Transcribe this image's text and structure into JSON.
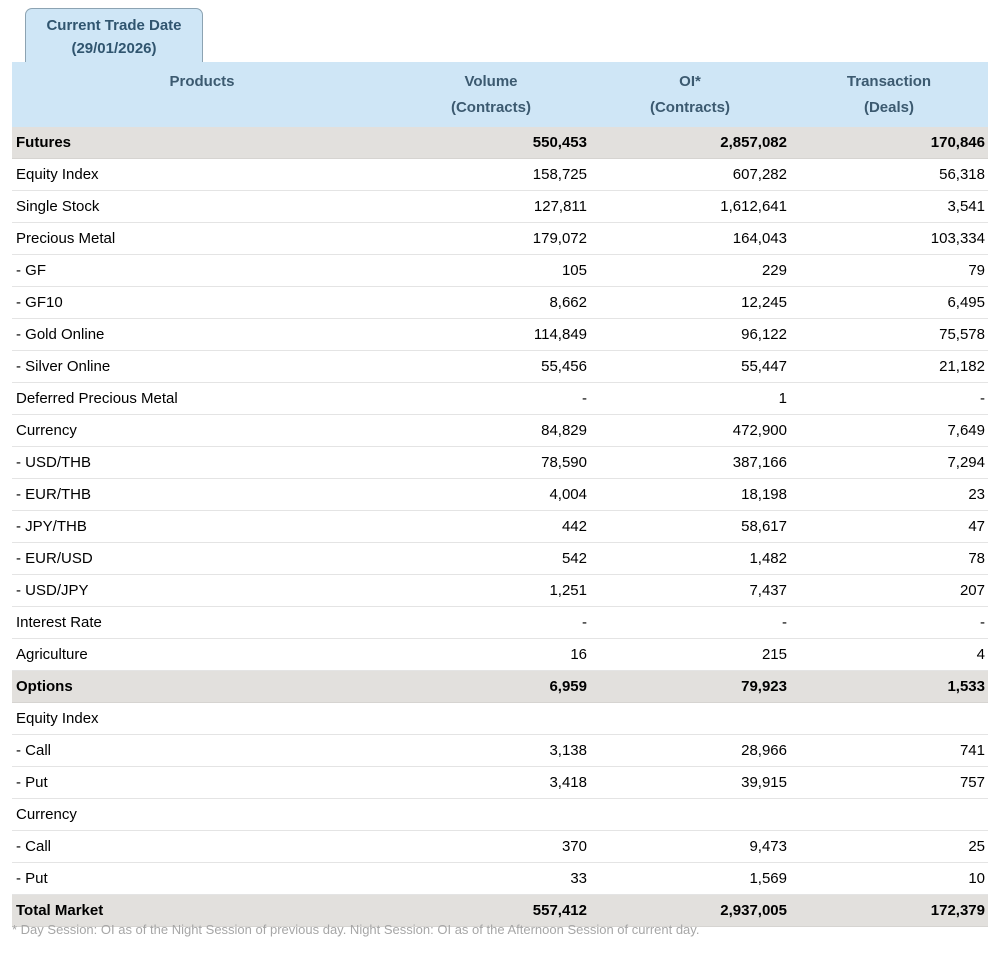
{
  "tab": {
    "title": "Current Trade Date",
    "date": "(29/01/2026)"
  },
  "table": {
    "columns": [
      {
        "label": "Products",
        "sub": ""
      },
      {
        "label": "Volume",
        "sub": "(Contracts)"
      },
      {
        "label": "OI*",
        "sub": "(Contracts)"
      },
      {
        "label": "Transaction",
        "sub": "(Deals)"
      }
    ],
    "rows": [
      {
        "product": "Futures",
        "volume": "550,453",
        "oi": "2,857,082",
        "transaction": "170,846",
        "type": "section"
      },
      {
        "product": "Equity Index",
        "volume": "158,725",
        "oi": "607,282",
        "transaction": "56,318",
        "type": "item"
      },
      {
        "product": "Single Stock",
        "volume": "127,811",
        "oi": "1,612,641",
        "transaction": "3,541",
        "type": "item"
      },
      {
        "product": "Precious Metal",
        "volume": "179,072",
        "oi": "164,043",
        "transaction": "103,334",
        "type": "item"
      },
      {
        "product": "- GF",
        "volume": "105",
        "oi": "229",
        "transaction": "79",
        "type": "item"
      },
      {
        "product": "- GF10",
        "volume": "8,662",
        "oi": "12,245",
        "transaction": "6,495",
        "type": "item"
      },
      {
        "product": "- Gold Online",
        "volume": "114,849",
        "oi": "96,122",
        "transaction": "75,578",
        "type": "item"
      },
      {
        "product": "- Silver Online",
        "volume": "55,456",
        "oi": "55,447",
        "transaction": "21,182",
        "type": "item"
      },
      {
        "product": "Deferred Precious Metal",
        "volume": "-",
        "oi": "1",
        "transaction": "-",
        "type": "item"
      },
      {
        "product": "Currency",
        "volume": "84,829",
        "oi": "472,900",
        "transaction": "7,649",
        "type": "item"
      },
      {
        "product": "- USD/THB",
        "volume": "78,590",
        "oi": "387,166",
        "transaction": "7,294",
        "type": "item"
      },
      {
        "product": "- EUR/THB",
        "volume": "4,004",
        "oi": "18,198",
        "transaction": "23",
        "type": "item"
      },
      {
        "product": "- JPY/THB",
        "volume": "442",
        "oi": "58,617",
        "transaction": "47",
        "type": "item"
      },
      {
        "product": "- EUR/USD",
        "volume": "542",
        "oi": "1,482",
        "transaction": "78",
        "type": "item"
      },
      {
        "product": "- USD/JPY",
        "volume": "1,251",
        "oi": "7,437",
        "transaction": "207",
        "type": "item"
      },
      {
        "product": "Interest Rate",
        "volume": "-",
        "oi": "-",
        "transaction": "-",
        "type": "item"
      },
      {
        "product": "Agriculture",
        "volume": "16",
        "oi": "215",
        "transaction": "4",
        "type": "item"
      },
      {
        "product": "Options",
        "volume": "6,959",
        "oi": "79,923",
        "transaction": "1,533",
        "type": "section"
      },
      {
        "product": "Equity Index",
        "volume": "",
        "oi": "",
        "transaction": "",
        "type": "group"
      },
      {
        "product": "- Call",
        "volume": "3,138",
        "oi": "28,966",
        "transaction": "741",
        "type": "item"
      },
      {
        "product": "- Put",
        "volume": "3,418",
        "oi": "39,915",
        "transaction": "757",
        "type": "item"
      },
      {
        "product": "Currency",
        "volume": "",
        "oi": "",
        "transaction": "",
        "type": "group"
      },
      {
        "product": "- Call",
        "volume": "370",
        "oi": "9,473",
        "transaction": "25",
        "type": "item"
      },
      {
        "product": "- Put",
        "volume": "33",
        "oi": "1,569",
        "transaction": "10",
        "type": "item"
      },
      {
        "product": "Total Market",
        "volume": "557,412",
        "oi": "2,937,005",
        "transaction": "172,379",
        "type": "section"
      }
    ]
  },
  "footnote": "* Day Session: OI as of the Night Session of previous day. Night Session: OI as of the Afternoon Session of current day.",
  "colors": {
    "header_background": "#cfe6f6",
    "header_text": "#3c5a70",
    "section_row_background": "#e2e0dd",
    "row_border": "#e4e4e4",
    "body_text": "#000000",
    "footnote_text": "#a6a6a6",
    "tab_border": "#8ca3b2"
  }
}
